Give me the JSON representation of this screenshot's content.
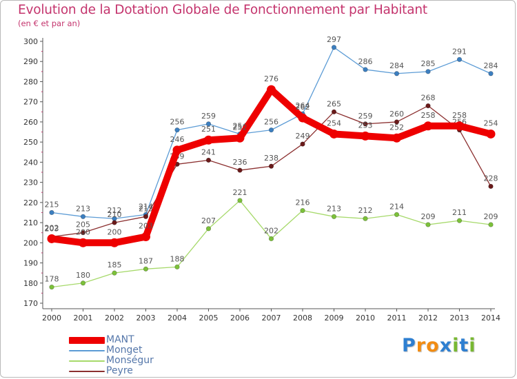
{
  "chart_data": {
    "type": "line",
    "title": "Evolution de la Dotation Globale de Fonctionnement par Habitant",
    "subtitle": "(en € et par an)",
    "xlabel": "",
    "ylabel": "",
    "ylim": [
      170,
      300
    ],
    "yticks": [
      170,
      180,
      190,
      200,
      210,
      220,
      230,
      240,
      250,
      260,
      270,
      280,
      290,
      300
    ],
    "categories": [
      "2000",
      "2001",
      "2002",
      "2003",
      "2004",
      "2005",
      "2006",
      "2007",
      "2008",
      "2009",
      "2010",
      "2011",
      "2012",
      "2013",
      "2014"
    ],
    "grid": false,
    "legend_position": "bottom-left",
    "series": [
      {
        "name": "Monget",
        "color": "#5b9bd5",
        "marker": "#3c7fc0",
        "values": [
          215,
          213,
          212,
          214,
          256,
          259,
          254,
          256,
          264,
          297,
          286,
          284,
          285,
          291,
          284
        ]
      },
      {
        "name": "Monségur",
        "color": "#a6d96a",
        "marker": "#7cc13a",
        "values": [
          178,
          180,
          185,
          187,
          188,
          207,
          221,
          202,
          216,
          213,
          212,
          214,
          209,
          211,
          209
        ]
      },
      {
        "name": "Peyre",
        "color": "#8b2f2f",
        "marker": "#6a1a1a",
        "values": [
          203,
          205,
          210,
          213,
          239,
          241,
          236,
          238,
          249,
          265,
          259,
          260,
          268,
          256,
          228
        ]
      },
      {
        "name": "MANT",
        "color": "#ee0000",
        "marker": "#ee0000",
        "values": [
          202,
          200,
          200,
          203,
          246,
          251,
          252,
          276,
          262,
          254,
          253,
          252,
          258,
          258,
          254
        ]
      }
    ]
  },
  "legend": {
    "items": [
      {
        "label": "MANT",
        "color": "#ee0000",
        "thickness": 10
      },
      {
        "label": "Monget",
        "color": "#5b9bd5",
        "thickness": 2
      },
      {
        "label": "Monségur",
        "color": "#a6d96a",
        "thickness": 2
      },
      {
        "label": "Peyre",
        "color": "#8b2f2f",
        "thickness": 2
      }
    ]
  },
  "brand": {
    "letters": [
      "P",
      "r",
      "o",
      "x",
      "i",
      "t",
      "i"
    ],
    "colors": [
      "#2e7fd1",
      "#f28c12",
      "#f28c12",
      "#2e7fd1",
      "#78b832",
      "#2e7fd1",
      "#78b832"
    ]
  }
}
